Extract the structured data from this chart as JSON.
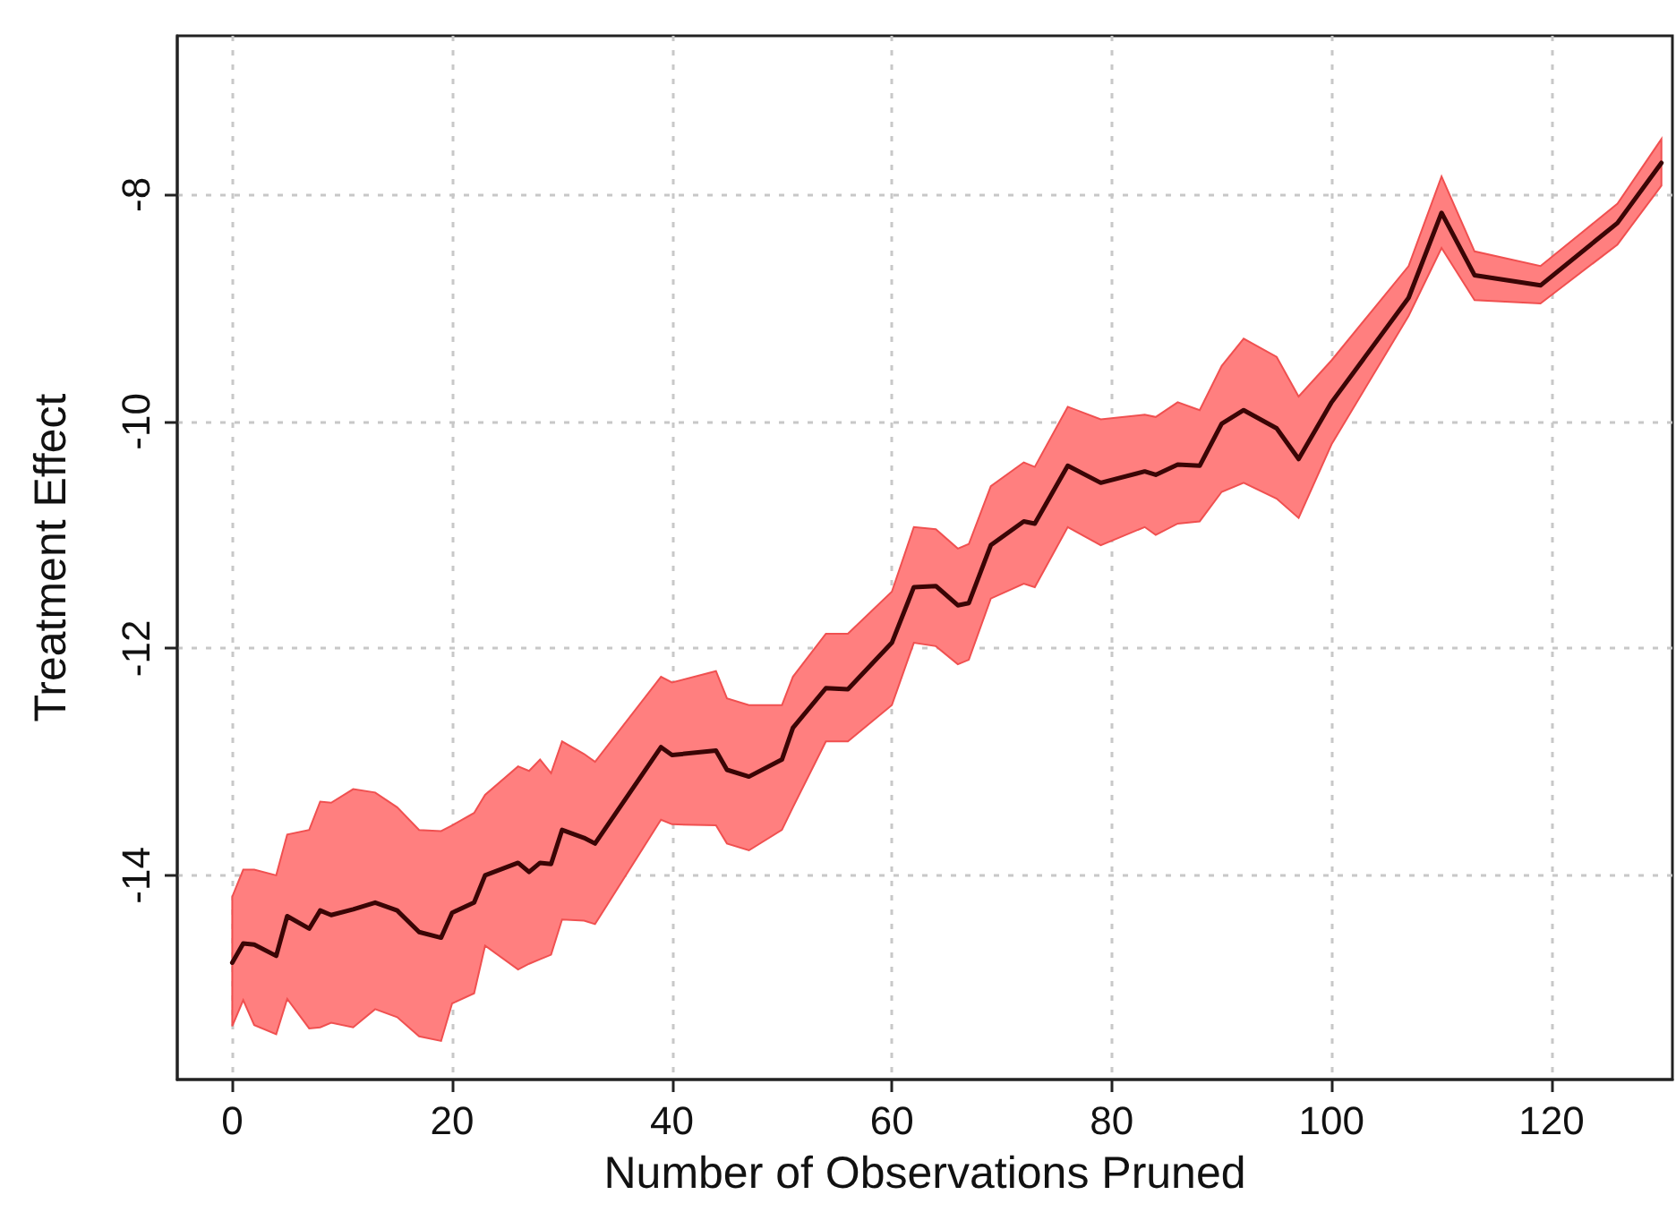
{
  "chart_data": {
    "type": "line",
    "xlabel": "Number of Observations Pruned",
    "ylabel": "Treatment Effect",
    "xlim": [
      -5,
      131
    ],
    "ylim": [
      -15.8,
      -6.6
    ],
    "xticks": [
      0,
      20,
      40,
      60,
      80,
      100,
      120
    ],
    "yticks": [
      -14,
      -12,
      -10,
      -8
    ],
    "grid": true,
    "marker": "none",
    "line_style": "solid",
    "series": [
      {
        "color": "#3a0505",
        "x": [
          0,
          1,
          2,
          4,
          5,
          7,
          8,
          9,
          11,
          13,
          15,
          17,
          19,
          20,
          22,
          23,
          26,
          27,
          28,
          29,
          30,
          32,
          33,
          39,
          40,
          44,
          45,
          47,
          50,
          51,
          54,
          56,
          60,
          62,
          64,
          66,
          67,
          69,
          72,
          73,
          76,
          79,
          83,
          84,
          86,
          88,
          90,
          92,
          95,
          97,
          100,
          107,
          110,
          113,
          119,
          126,
          130
        ],
        "values": [
          -14.77,
          -14.6,
          -14.61,
          -14.71,
          -14.36,
          -14.47,
          -14.31,
          -14.35,
          -14.3,
          -14.24,
          -14.31,
          -14.5,
          -14.55,
          -14.33,
          -14.24,
          -14.0,
          -13.89,
          -13.97,
          -13.89,
          -13.9,
          -13.6,
          -13.67,
          -13.72,
          -12.87,
          -12.94,
          -12.9,
          -13.07,
          -13.13,
          -12.98,
          -12.7,
          -12.35,
          -12.36,
          -11.95,
          -11.46,
          -11.45,
          -11.62,
          -11.6,
          -11.09,
          -10.88,
          -10.9,
          -10.39,
          -10.54,
          -10.44,
          -10.47,
          -10.38,
          -10.39,
          -10.02,
          -9.9,
          -10.06,
          -10.33,
          -9.83,
          -8.91,
          -8.16,
          -8.71,
          -8.8,
          -8.25,
          -7.72
        ],
        "lower": [
          -15.33,
          -15.1,
          -15.32,
          -15.4,
          -15.09,
          -15.35,
          -15.34,
          -15.3,
          -15.34,
          -15.18,
          -15.25,
          -15.42,
          -15.46,
          -15.13,
          -15.04,
          -14.62,
          -14.83,
          -14.78,
          -14.74,
          -14.7,
          -14.39,
          -14.4,
          -14.43,
          -13.51,
          -13.55,
          -13.56,
          -13.72,
          -13.78,
          -13.6,
          -13.4,
          -12.82,
          -12.82,
          -12.5,
          -11.95,
          -11.98,
          -12.14,
          -12.1,
          -11.56,
          -11.43,
          -11.46,
          -10.93,
          -11.09,
          -10.93,
          -11.0,
          -10.9,
          -10.88,
          -10.62,
          -10.54,
          -10.68,
          -10.85,
          -10.2,
          -9.07,
          -8.47,
          -8.93,
          -8.96,
          -8.44,
          -7.92
        ],
        "upper": [
          -14.19,
          -13.95,
          -13.95,
          -14.0,
          -13.64,
          -13.6,
          -13.35,
          -13.36,
          -13.24,
          -13.27,
          -13.4,
          -13.6,
          -13.61,
          -13.56,
          -13.45,
          -13.29,
          -13.04,
          -13.08,
          -12.98,
          -13.1,
          -12.82,
          -12.93,
          -13.0,
          -12.25,
          -12.3,
          -12.2,
          -12.44,
          -12.5,
          -12.5,
          -12.25,
          -11.87,
          -11.87,
          -11.5,
          -10.93,
          -10.95,
          -11.12,
          -11.08,
          -10.57,
          -10.36,
          -10.4,
          -9.87,
          -9.98,
          -9.94,
          -9.96,
          -9.83,
          -9.9,
          -9.51,
          -9.27,
          -9.43,
          -9.78,
          -9.46,
          -8.63,
          -7.84,
          -8.5,
          -8.63,
          -8.08,
          -7.51
        ]
      }
    ]
  }
}
